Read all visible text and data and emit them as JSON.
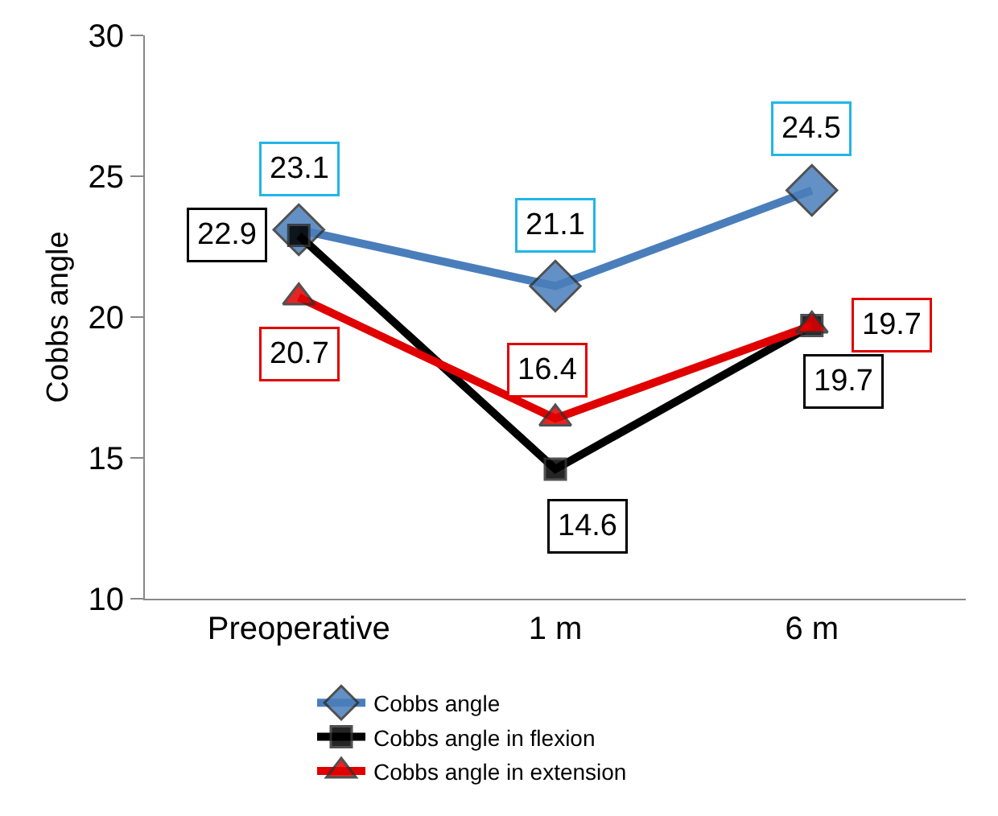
{
  "chart_data": {
    "type": "line",
    "ylabel": "Cobbs angle",
    "categories": [
      "Preoperative",
      "1 m",
      "6 m"
    ],
    "series": [
      {
        "name": "Cobbs angle",
        "color": "#4a7ebb",
        "marker": "diamond",
        "values": [
          23.1,
          21.1,
          24.5
        ]
      },
      {
        "name": "Cobbs angle in flexion",
        "color": "#000000",
        "marker": "square",
        "values": [
          22.9,
          14.6,
          19.7
        ]
      },
      {
        "name": "Cobbs angle in extension",
        "color": "#e00000",
        "marker": "triangle",
        "values": [
          20.7,
          16.4,
          19.7
        ]
      }
    ],
    "ylim": [
      10,
      30
    ],
    "yticks": [
      10,
      15,
      20,
      25,
      30
    ],
    "grid": false,
    "legend": "bottom",
    "data_labels": true,
    "line_style": "solid"
  }
}
